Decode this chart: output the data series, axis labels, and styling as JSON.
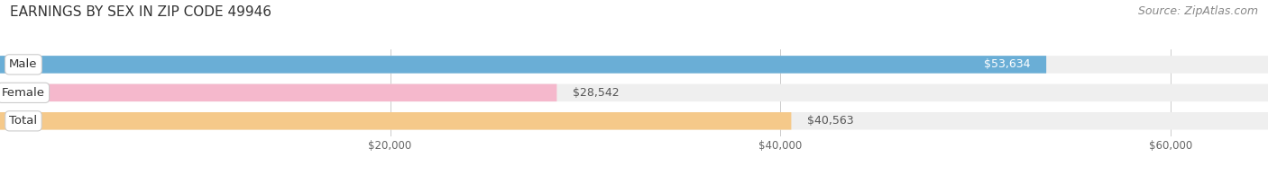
{
  "title": "EARNINGS BY SEX IN ZIP CODE 49946",
  "source": "Source: ZipAtlas.com",
  "categories": [
    "Male",
    "Female",
    "Total"
  ],
  "values": [
    53634,
    28542,
    40563
  ],
  "bar_colors": [
    "#6aaed6",
    "#f5b8cc",
    "#f5c98a"
  ],
  "bar_bg_color": "#efefef",
  "value_labels": [
    "$53,634",
    "$28,542",
    "$40,563"
  ],
  "xmin": 0,
  "xmax": 65000,
  "xticks": [
    20000,
    40000,
    60000
  ],
  "xtick_labels": [
    "$20,000",
    "$40,000",
    "$60,000"
  ],
  "title_fontsize": 11,
  "source_fontsize": 9,
  "bar_label_fontsize": 9.5,
  "value_fontsize": 9,
  "background_color": "#ffffff",
  "bar_height": 0.62,
  "rounding_size": 0.18
}
